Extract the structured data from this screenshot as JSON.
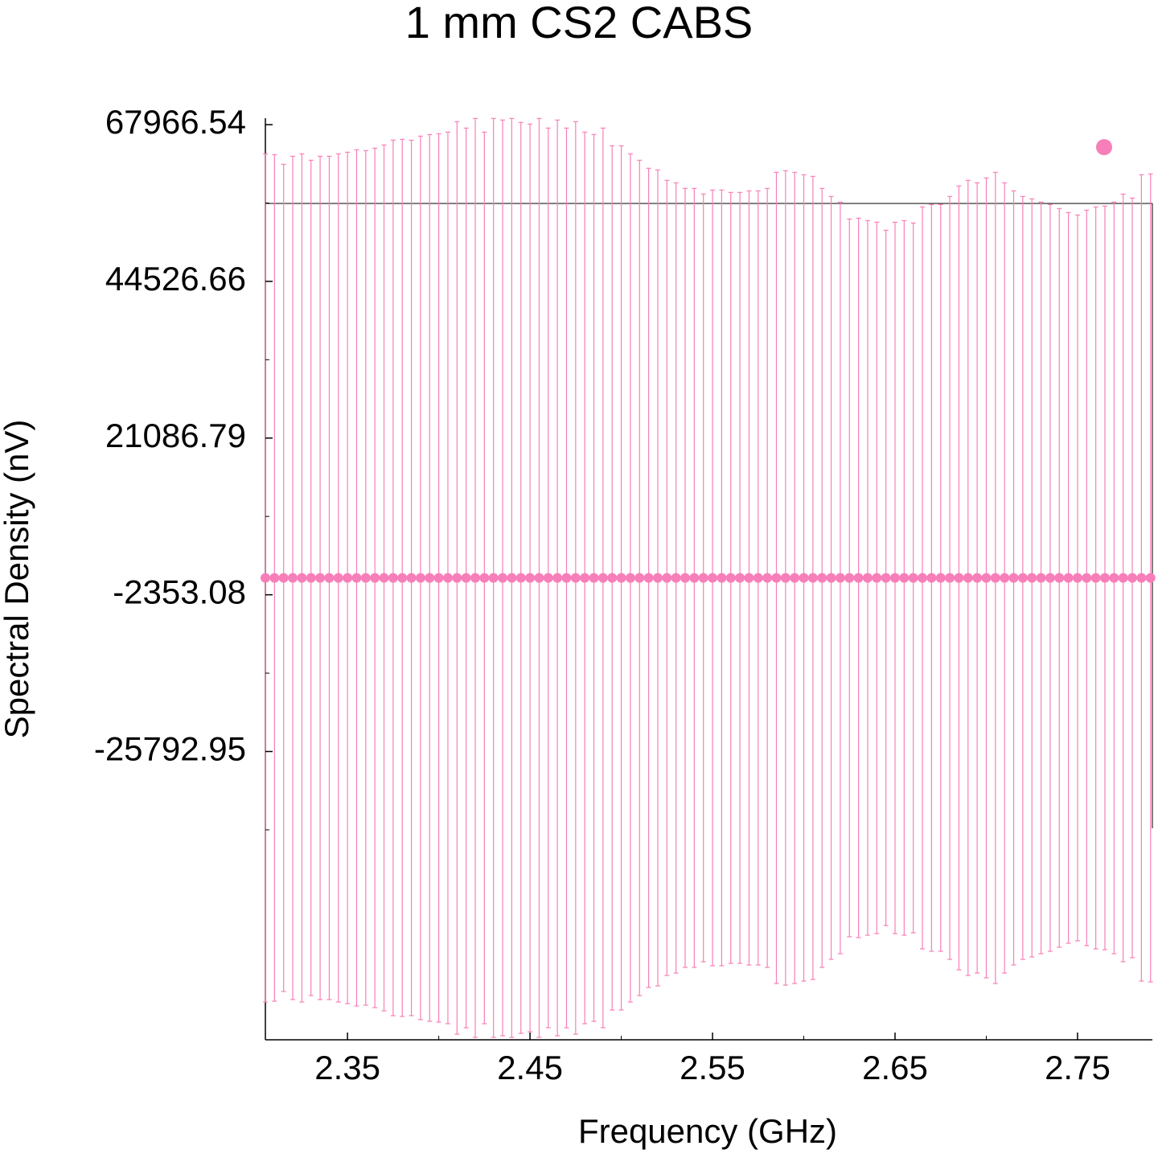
{
  "chart_data": {
    "type": "errorbar",
    "title": "1 mm CS2 CABS",
    "x_label": "Frequency (GHz)",
    "y_label": "Spectral Density (nV)",
    "xlim": [
      2.305,
      2.791
    ],
    "ylim": [
      -68913,
      68929
    ],
    "xticks": [
      2.35,
      2.45,
      2.55,
      2.65,
      2.75
    ],
    "yticks": [
      -25792.95,
      -2353.08,
      21086.79,
      44526.66,
      67966.54
    ],
    "color": "#f77fb9",
    "x": [
      2.305,
      2.31,
      2.315,
      2.32,
      2.325,
      2.33,
      2.335,
      2.34,
      2.345,
      2.35,
      2.355,
      2.36,
      2.365,
      2.37,
      2.375,
      2.38,
      2.385,
      2.39,
      2.395,
      2.4,
      2.405,
      2.41,
      2.415,
      2.42,
      2.425,
      2.43,
      2.435,
      2.44,
      2.445,
      2.45,
      2.455,
      2.46,
      2.465,
      2.47,
      2.475,
      2.48,
      2.485,
      2.49,
      2.495,
      2.5,
      2.505,
      2.51,
      2.515,
      2.52,
      2.525,
      2.53,
      2.535,
      2.54,
      2.545,
      2.55,
      2.555,
      2.56,
      2.565,
      2.57,
      2.575,
      2.58,
      2.585,
      2.59,
      2.595,
      2.6,
      2.605,
      2.61,
      2.615,
      2.62,
      2.625,
      2.63,
      2.635,
      2.64,
      2.645,
      2.65,
      2.655,
      2.66,
      2.665,
      2.67,
      2.675,
      2.68,
      2.685,
      2.69,
      2.695,
      2.7,
      2.705,
      2.71,
      2.715,
      2.72,
      2.725,
      2.73,
      2.735,
      2.74,
      2.745,
      2.75,
      2.755,
      2.76,
      2.765,
      2.77,
      2.775,
      2.78,
      2.785,
      2.79
    ],
    "values": [
      170,
      170,
      170,
      170,
      170,
      170,
      170,
      170,
      170,
      170,
      170,
      170,
      170,
      170,
      170,
      170,
      170,
      170,
      170,
      170,
      170,
      170,
      170,
      170,
      170,
      170,
      170,
      170,
      170,
      170,
      170,
      170,
      170,
      170,
      170,
      170,
      170,
      170,
      170,
      170,
      170,
      170,
      170,
      170,
      170,
      170,
      170,
      170,
      170,
      170,
      170,
      170,
      170,
      170,
      170,
      170,
      170,
      170,
      170,
      170,
      170,
      170,
      170,
      170,
      170,
      170,
      170,
      170,
      170,
      170,
      170,
      170,
      170,
      170,
      170,
      170,
      170,
      170,
      170,
      170,
      170,
      170,
      170,
      170,
      170,
      170,
      170,
      170,
      170,
      170,
      170,
      170,
      170,
      170,
      170,
      170,
      170,
      170
    ],
    "errors": [
      63430,
      63309,
      61865,
      63069,
      63430,
      62467,
      63069,
      63069,
      63430,
      63670,
      64032,
      63911,
      64272,
      64754,
      65476,
      65596,
      65476,
      66078,
      66318,
      66439,
      66679,
      68244,
      67281,
      68726,
      66679,
      68726,
      68485,
      68726,
      68124,
      67883,
      68726,
      67281,
      68485,
      67281,
      68244,
      66679,
      66318,
      67281,
      64633,
      64633,
      63430,
      62467,
      61263,
      61023,
      59458,
      59097,
      58254,
      58254,
      57412,
      58014,
      58014,
      57652,
      57652,
      57893,
      57893,
      58254,
      60661,
      60902,
      60661,
      60300,
      60060,
      58254,
      57051,
      56208,
      53681,
      53801,
      53440,
      53199,
      51996,
      53199,
      53440,
      53079,
      55486,
      55847,
      55847,
      57051,
      58615,
      59458,
      59097,
      59819,
      60661,
      59097,
      57893,
      57051,
      56690,
      56208,
      55847,
      55245,
      54643,
      54282,
      55005,
      55486,
      55606,
      56208,
      57412,
      56810,
      60300,
      60421
    ]
  }
}
